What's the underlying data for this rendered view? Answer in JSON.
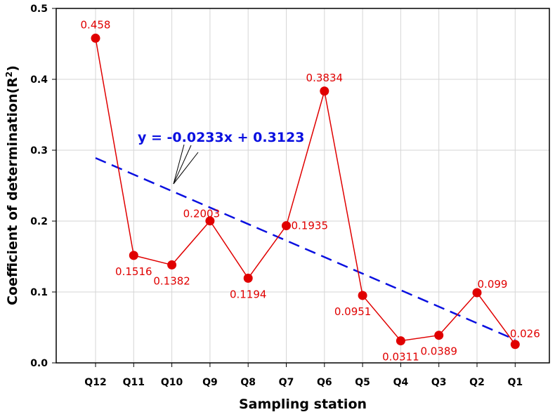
{
  "chart_data": {
    "type": "line",
    "xlabel": "Sampling station",
    "ylabel": "Coefficient of determination(R",
    "ylabel_sup": "2",
    "ylabel_end": ")",
    "ylim": [
      0.0,
      0.5
    ],
    "yticks": [
      "0.0",
      "0.1",
      "0.2",
      "0.3",
      "0.4",
      "0.5"
    ],
    "categories": [
      "Q12",
      "Q11",
      "Q10",
      "Q9",
      "Q8",
      "Q7",
      "Q6",
      "Q5",
      "Q4",
      "Q3",
      "Q2",
      "Q1"
    ],
    "series": [
      {
        "name": "R2",
        "color": "#e00000",
        "values": [
          0.458,
          0.1516,
          0.1382,
          0.2003,
          0.1194,
          0.1935,
          0.3834,
          0.0951,
          0.0311,
          0.0389,
          0.099,
          0.026
        ],
        "labels": [
          "0.458",
          "0.1516",
          "0.1382",
          "0.2003",
          "0.1194",
          "0.1935",
          "0.3834",
          "0.0951",
          "0.0311",
          "0.0389",
          "0.099",
          "0.026"
        ]
      }
    ],
    "trendline": {
      "equation": "y = -0.0233x + 0.3123",
      "slope": -0.0233,
      "intercept": 0.3123,
      "color": "#0a10e0",
      "style": "dashed"
    },
    "grid": true
  }
}
